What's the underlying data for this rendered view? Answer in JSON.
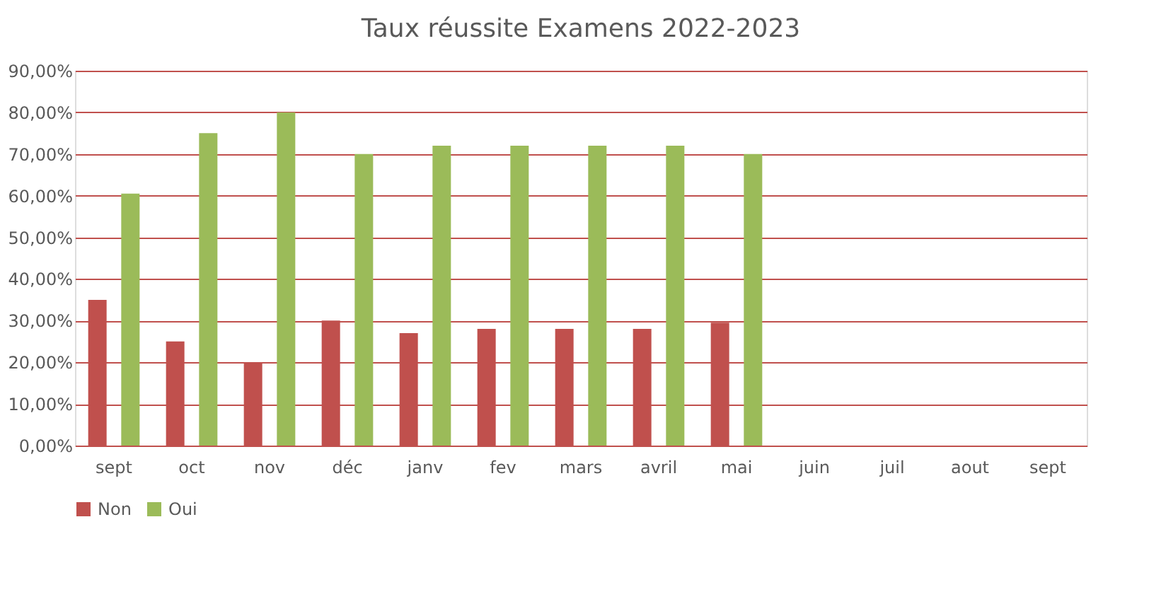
{
  "chart_data": {
    "type": "bar",
    "title": "Taux réussite Examens 2022-2023",
    "categories": [
      "sept",
      "oct",
      "nov",
      "déc",
      "janv",
      "fev",
      "mars",
      "avril",
      "mai",
      "juin",
      "juil",
      "aout",
      "sept"
    ],
    "series": [
      {
        "name": "Non",
        "color": "#c0504d",
        "values": [
          35,
          25,
          20,
          30,
          27,
          28,
          28,
          28,
          29.5,
          null,
          null,
          null,
          null
        ]
      },
      {
        "name": "Oui",
        "color": "#9bbb59",
        "values": [
          60.5,
          75,
          80,
          70,
          72,
          72,
          72,
          72,
          70,
          null,
          null,
          null,
          null
        ]
      }
    ],
    "ylim": [
      0,
      90
    ],
    "yticks": [
      {
        "value": 0,
        "label": "0,00%"
      },
      {
        "value": 10,
        "label": "10,00%"
      },
      {
        "value": 20,
        "label": "20,00%"
      },
      {
        "value": 30,
        "label": "30,00%"
      },
      {
        "value": 40,
        "label": "40,00%"
      },
      {
        "value": 50,
        "label": "50,00%"
      },
      {
        "value": 60,
        "label": "60,00%"
      },
      {
        "value": 70,
        "label": "70,00%"
      },
      {
        "value": 80,
        "label": "80,00%"
      },
      {
        "value": 90,
        "label": "90,00%"
      }
    ],
    "grid": "y",
    "legend": "bottom"
  }
}
